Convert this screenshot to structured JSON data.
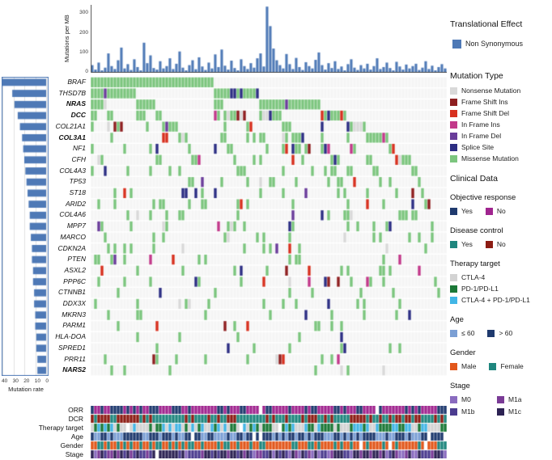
{
  "chart_data": {
    "type": "oncoprint",
    "top_chart": {
      "type": "bar",
      "ylabel": "Mutations per MB",
      "yticks": [
        0,
        100,
        200,
        300
      ],
      "ymax": 340,
      "bar_color": "#4e79b6",
      "values": [
        35,
        12,
        48,
        8,
        22,
        95,
        30,
        15,
        60,
        125,
        18,
        40,
        10,
        65,
        25,
        8,
        150,
        45,
        85,
        20,
        12,
        55,
        18,
        30,
        70,
        15,
        42,
        105,
        22,
        8,
        35,
        60,
        14,
        75,
        28,
        10,
        48,
        18,
        90,
        25,
        115,
        32,
        12,
        58,
        20,
        8,
        65,
        30,
        15,
        45,
        22,
        70,
        95,
        28,
        335,
        235,
        120,
        60,
        35,
        18,
        92,
        40,
        15,
        72,
        25,
        10,
        50,
        30,
        18,
        62,
        100,
        35,
        12,
        45,
        20,
        55,
        15,
        28,
        8,
        40,
        65,
        22,
        10,
        35,
        18,
        42,
        12,
        30,
        70,
        15,
        25,
        48,
        20,
        8,
        52,
        28,
        12,
        38,
        18,
        30,
        42,
        10,
        22,
        55,
        15,
        32,
        8,
        25,
        40,
        18
      ]
    },
    "translational_legend": {
      "title": "Translational Effect",
      "items": [
        {
          "label": "Non Synonymous",
          "color": "#4e79b6"
        }
      ]
    },
    "left_chart": {
      "type": "bar",
      "xlabel": "Mutation rate",
      "xticks": [
        40,
        30,
        20,
        10,
        0
      ],
      "xmax": 40,
      "bar_color": "#4e79b6",
      "border_color": "#4e79b6"
    },
    "oncoprint": {
      "legend_title": "Mutation Type",
      "n_samples": 110,
      "empty_color": "#f5f5f5",
      "genes": [
        {
          "name": "BRAF",
          "bold": false,
          "hotspot": true,
          "rate": 40
        },
        {
          "name": "THSD7B",
          "bold": false,
          "hotspot": false,
          "rate": 31
        },
        {
          "name": "NRAS",
          "bold": true,
          "hotspot": true,
          "rate": 29
        },
        {
          "name": "DCC",
          "bold": true,
          "hotspot": false,
          "rate": 26
        },
        {
          "name": "COL21A1",
          "bold": false,
          "hotspot": false,
          "rate": 24
        },
        {
          "name": "COL3A1",
          "bold": true,
          "hotspot": false,
          "rate": 22
        },
        {
          "name": "NF1",
          "bold": false,
          "hotspot": false,
          "rate": 21
        },
        {
          "name": "CFH",
          "bold": false,
          "hotspot": false,
          "rate": 20
        },
        {
          "name": "COL4A3",
          "bold": false,
          "hotspot": false,
          "rate": 19
        },
        {
          "name": "TP53",
          "bold": false,
          "hotspot": false,
          "rate": 18
        },
        {
          "name": "ST18",
          "bold": false,
          "hotspot": false,
          "rate": 17
        },
        {
          "name": "ARID2",
          "bold": false,
          "hotspot": false,
          "rate": 16
        },
        {
          "name": "COL4A6",
          "bold": false,
          "hotspot": false,
          "rate": 15
        },
        {
          "name": "MPP7",
          "bold": false,
          "hotspot": false,
          "rate": 15
        },
        {
          "name": "MARCO",
          "bold": false,
          "hotspot": false,
          "rate": 14
        },
        {
          "name": "CDKN2A",
          "bold": false,
          "hotspot": false,
          "rate": 13
        },
        {
          "name": "PTEN",
          "bold": false,
          "hotspot": false,
          "rate": 13
        },
        {
          "name": "ASXL2",
          "bold": false,
          "hotspot": false,
          "rate": 12
        },
        {
          "name": "PPP6C",
          "bold": false,
          "hotspot": false,
          "rate": 12
        },
        {
          "name": "CTNNB1",
          "bold": false,
          "hotspot": false,
          "rate": 11
        },
        {
          "name": "DDX3X",
          "bold": false,
          "hotspot": false,
          "rate": 11
        },
        {
          "name": "MKRN3",
          "bold": false,
          "hotspot": false,
          "rate": 10
        },
        {
          "name": "PARM1",
          "bold": false,
          "hotspot": false,
          "rate": 10
        },
        {
          "name": "HLA-DOA",
          "bold": false,
          "hotspot": false,
          "rate": 9
        },
        {
          "name": "SPRED1",
          "bold": false,
          "hotspot": false,
          "rate": 9
        },
        {
          "name": "PRR11",
          "bold": false,
          "hotspot": false,
          "rate": 8
        },
        {
          "name": "NARS2",
          "bold": true,
          "hotspot": false,
          "rate": 8
        }
      ],
      "mutation_types": [
        {
          "label": "Nonsense Mutation",
          "color": "#d9d9d9",
          "weight": 0.07
        },
        {
          "label": "Frame Shift Ins",
          "color": "#8e1f20",
          "weight": 0.03
        },
        {
          "label": "Frame Shift Del",
          "color": "#d7301f",
          "weight": 0.05
        },
        {
          "label": "In Frame Ins",
          "color": "#c2398a",
          "weight": 0.03
        },
        {
          "label": "In Frame Del",
          "color": "#6a3d9a",
          "weight": 0.03
        },
        {
          "label": "Splice Site",
          "color": "#2d2e83",
          "weight": 0.07
        },
        {
          "label": "Missense Mutation",
          "color": "#7cc57e",
          "weight": 0.72
        }
      ]
    },
    "clinical": {
      "legend_title": "Clinical Data",
      "groups": [
        {
          "name": "Objective response",
          "track_label": "ORR",
          "layout": "row",
          "items": [
            {
              "label": "Yes",
              "color": "#1f3a6e",
              "weight": 0.25
            },
            {
              "label": "No",
              "color": "#a0258f",
              "weight": 0.75
            }
          ]
        },
        {
          "name": "Disease control",
          "track_label": "DCR",
          "layout": "row",
          "items": [
            {
              "label": "Yes",
              "color": "#1f867e",
              "weight": 0.55
            },
            {
              "label": "No",
              "color": "#8c1c13",
              "weight": 0.45
            }
          ]
        },
        {
          "name": "Therapy target",
          "track_label": "Therapy target",
          "layout": "column",
          "items": [
            {
              "label": "CTLA-4",
              "color": "#d3d3d3",
              "weight": 0.33
            },
            {
              "label": "PD-1/PD-L1",
              "color": "#1b7837",
              "weight": 0.45
            },
            {
              "label": "CTLA-4 + PD-1/PD-L1",
              "color": "#41b6e6",
              "weight": 0.22
            }
          ]
        },
        {
          "name": "Age",
          "track_label": "Age",
          "layout": "row",
          "items": [
            {
              "label": "≤ 60",
              "color": "#7b9fd4",
              "weight": 0.5
            },
            {
              "label": "> 60",
              "color": "#1f3a6e",
              "weight": 0.5
            }
          ]
        },
        {
          "name": "Gender",
          "track_label": "Gender",
          "layout": "row",
          "items": [
            {
              "label": "Male",
              "color": "#e2571b",
              "weight": 0.6
            },
            {
              "label": "Female",
              "color": "#1f867e",
              "weight": 0.4
            }
          ]
        },
        {
          "name": "Stage",
          "track_label": "Stage",
          "layout": "grid2",
          "items": [
            {
              "label": "M0",
              "color": "#8a6bbf",
              "weight": 0.15
            },
            {
              "label": "M1a",
              "color": "#7a3b96",
              "weight": 0.2
            },
            {
              "label": "M1b",
              "color": "#4b3c8f",
              "weight": 0.25
            },
            {
              "label": "M1c",
              "color": "#2c2253",
              "weight": 0.4
            }
          ]
        }
      ]
    }
  }
}
